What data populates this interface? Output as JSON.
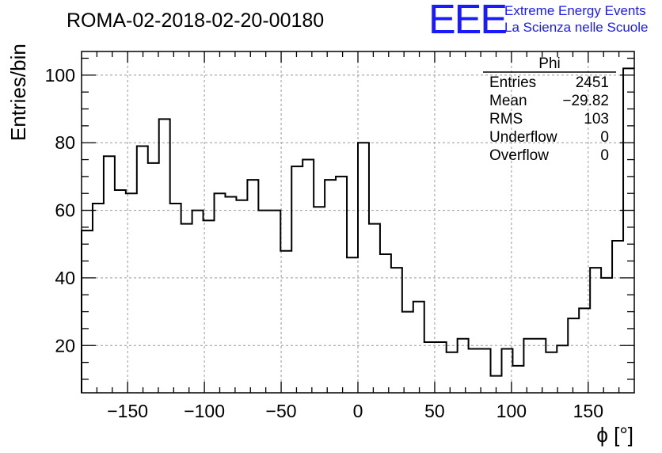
{
  "header": {
    "title": "ROMA-02-2018-02-20-00180",
    "logo_text": "EEE",
    "logo_line1": "Extreme Energy Events",
    "logo_line2": "La Scienza nelle Scuole",
    "logo_color": "#1a1aff"
  },
  "stats_box": {
    "name": "Phi",
    "rows": [
      {
        "label": "Entries",
        "value": "2451"
      },
      {
        "label": "Mean",
        "value": "−29.82"
      },
      {
        "label": "RMS",
        "value": "103"
      },
      {
        "label": "Underflow",
        "value": "0"
      },
      {
        "label": "Overflow",
        "value": "0"
      }
    ]
  },
  "chart_data": {
    "type": "histogram",
    "xlabel": "ϕ [°]",
    "ylabel": "Entries/bin",
    "xlim": [
      -180,
      180
    ],
    "ylim": [
      6,
      107
    ],
    "bin_width": 7.2,
    "bin_edges_start": -180,
    "grid": true,
    "xticks": [
      -150,
      -100,
      -50,
      0,
      50,
      100,
      150
    ],
    "xtick_labels": [
      "−150",
      "−100",
      "−50",
      "0",
      "50",
      "100",
      "150"
    ],
    "yticks": [
      20,
      40,
      60,
      80,
      100
    ],
    "ytick_labels": [
      "20",
      "40",
      "60",
      "80",
      "100"
    ],
    "values": [
      54,
      62,
      76,
      66,
      65,
      79,
      74,
      87,
      62,
      56,
      60,
      57,
      65,
      64,
      63,
      69,
      60,
      60,
      48,
      73,
      75,
      61,
      69,
      70,
      46,
      80,
      56,
      47,
      43,
      30,
      33,
      21,
      21,
      18,
      22,
      19,
      19,
      11,
      19,
      14,
      22,
      22,
      18,
      20,
      28,
      31,
      43,
      40,
      51,
      102
    ]
  }
}
